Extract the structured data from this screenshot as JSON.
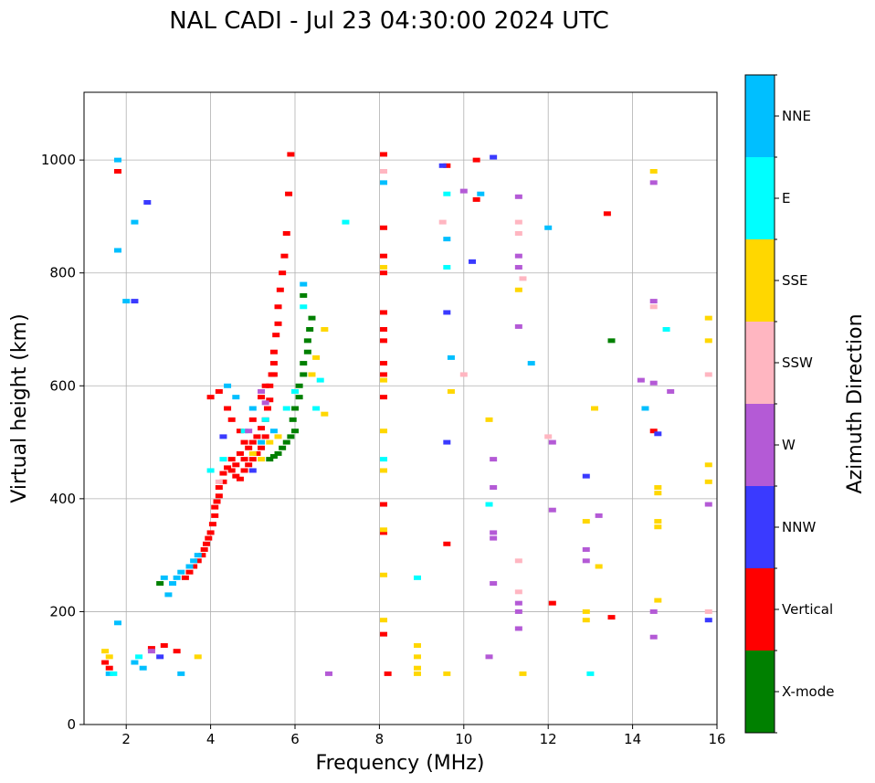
{
  "chart_data": {
    "type": "scatter",
    "title": "NAL CADI - Jul 23 04:30:00 2024 UTC",
    "xlabel": "Frequency (MHz)",
    "ylabel": "Virtual height (km)",
    "xlim": [
      1,
      16
    ],
    "ylim": [
      0,
      1120
    ],
    "xticks": [
      2,
      4,
      6,
      8,
      10,
      12,
      14,
      16
    ],
    "yticks": [
      0,
      200,
      400,
      600,
      800,
      1000
    ],
    "grid": true,
    "colorbar": {
      "title": "Azimuth Direction",
      "categories": [
        {
          "name": "X-mode",
          "color": "#008000"
        },
        {
          "name": "Vertical",
          "color": "#ff0000"
        },
        {
          "name": "NNW",
          "color": "#3a3aff"
        },
        {
          "name": "W",
          "color": "#b45ad6"
        },
        {
          "name": "SSW",
          "color": "#ffb6c1"
        },
        {
          "name": "SSE",
          "color": "#ffd700"
        },
        {
          "name": "E",
          "color": "#00ffff"
        },
        {
          "name": "NNE",
          "color": "#00bfff"
        }
      ]
    },
    "series": [
      {
        "name": "Vertical",
        "points": [
          [
            3.4,
            260
          ],
          [
            3.5,
            270
          ],
          [
            3.6,
            280
          ],
          [
            3.7,
            290
          ],
          [
            3.8,
            300
          ],
          [
            3.85,
            310
          ],
          [
            3.9,
            320
          ],
          [
            3.95,
            330
          ],
          [
            4.0,
            340
          ],
          [
            4.05,
            355
          ],
          [
            4.1,
            370
          ],
          [
            4.1,
            385
          ],
          [
            4.15,
            395
          ],
          [
            4.2,
            405
          ],
          [
            4.2,
            420
          ],
          [
            4.3,
            430
          ],
          [
            4.3,
            445
          ],
          [
            4.4,
            455
          ],
          [
            4.5,
            450
          ],
          [
            4.5,
            470
          ],
          [
            4.6,
            440
          ],
          [
            4.6,
            460
          ],
          [
            4.7,
            435
          ],
          [
            4.7,
            480
          ],
          [
            4.8,
            450
          ],
          [
            4.8,
            470
          ],
          [
            4.9,
            460
          ],
          [
            4.9,
            490
          ],
          [
            5.0,
            470
          ],
          [
            5.0,
            500
          ],
          [
            5.1,
            480
          ],
          [
            5.1,
            510
          ],
          [
            5.2,
            490
          ],
          [
            5.2,
            525
          ],
          [
            5.3,
            510
          ],
          [
            5.3,
            540
          ],
          [
            5.35,
            560
          ],
          [
            5.4,
            575
          ],
          [
            5.4,
            600
          ],
          [
            5.45,
            620
          ],
          [
            5.5,
            640
          ],
          [
            5.5,
            660
          ],
          [
            5.55,
            690
          ],
          [
            5.6,
            710
          ],
          [
            5.6,
            740
          ],
          [
            5.65,
            770
          ],
          [
            5.7,
            800
          ],
          [
            5.75,
            830
          ],
          [
            5.8,
            870
          ],
          [
            5.85,
            940
          ],
          [
            5.9,
            1010
          ],
          [
            4.0,
            580
          ],
          [
            4.2,
            590
          ],
          [
            4.4,
            560
          ],
          [
            4.5,
            540
          ],
          [
            4.7,
            520
          ],
          [
            4.8,
            500
          ],
          [
            5.0,
            540
          ],
          [
            5.2,
            580
          ],
          [
            5.3,
            600
          ],
          [
            5.5,
            620
          ],
          [
            3.2,
            130
          ],
          [
            2.9,
            140
          ],
          [
            2.6,
            135
          ],
          [
            1.6,
            100
          ],
          [
            1.5,
            110
          ],
          [
            1.8,
            980
          ],
          [
            8.1,
            1010
          ],
          [
            8.1,
            880
          ],
          [
            8.1,
            830
          ],
          [
            8.1,
            800
          ],
          [
            8.1,
            730
          ],
          [
            8.1,
            700
          ],
          [
            8.1,
            680
          ],
          [
            8.1,
            640
          ],
          [
            8.1,
            620
          ],
          [
            8.1,
            580
          ],
          [
            8.1,
            390
          ],
          [
            8.1,
            340
          ],
          [
            8.1,
            160
          ],
          [
            8.2,
            90
          ],
          [
            9.6,
            990
          ],
          [
            9.6,
            320
          ],
          [
            10.3,
            930
          ],
          [
            10.3,
            1000
          ],
          [
            12.1,
            215
          ],
          [
            13.4,
            905
          ],
          [
            13.5,
            190
          ],
          [
            14.5,
            520
          ]
        ]
      },
      {
        "name": "X-mode",
        "points": [
          [
            5.6,
            480
          ],
          [
            5.7,
            490
          ],
          [
            5.8,
            500
          ],
          [
            5.9,
            510
          ],
          [
            6.0,
            520
          ],
          [
            5.95,
            540
          ],
          [
            6.0,
            560
          ],
          [
            6.1,
            580
          ],
          [
            6.1,
            600
          ],
          [
            6.2,
            620
          ],
          [
            6.2,
            640
          ],
          [
            6.3,
            660
          ],
          [
            6.3,
            680
          ],
          [
            6.35,
            700
          ],
          [
            6.4,
            720
          ],
          [
            6.2,
            760
          ],
          [
            5.4,
            470
          ],
          [
            5.5,
            475
          ],
          [
            13.5,
            680
          ],
          [
            2.8,
            250
          ]
        ]
      },
      {
        "name": "NNE",
        "points": [
          [
            1.8,
            1000
          ],
          [
            2.2,
            890
          ],
          [
            2.0,
            750
          ],
          [
            1.8,
            840
          ],
          [
            3.0,
            230
          ],
          [
            3.1,
            250
          ],
          [
            3.2,
            260
          ],
          [
            3.3,
            270
          ],
          [
            3.5,
            280
          ],
          [
            3.6,
            290
          ],
          [
            3.7,
            300
          ],
          [
            4.4,
            600
          ],
          [
            4.6,
            580
          ],
          [
            5.0,
            560
          ],
          [
            5.2,
            500
          ],
          [
            5.5,
            520
          ],
          [
            6.2,
            780
          ],
          [
            1.8,
            180
          ],
          [
            2.2,
            110
          ],
          [
            2.4,
            100
          ],
          [
            3.3,
            90
          ],
          [
            8.1,
            960
          ],
          [
            9.6,
            860
          ],
          [
            9.7,
            650
          ],
          [
            10.4,
            940
          ],
          [
            11.6,
            640
          ],
          [
            12.0,
            880
          ],
          [
            14.3,
            560
          ],
          [
            1.6,
            90
          ],
          [
            2.9,
            260
          ]
        ]
      },
      {
        "name": "E",
        "points": [
          [
            4.0,
            450
          ],
          [
            4.3,
            470
          ],
          [
            4.8,
            520
          ],
          [
            5.3,
            540
          ],
          [
            5.8,
            560
          ],
          [
            6.0,
            590
          ],
          [
            6.6,
            610
          ],
          [
            6.5,
            560
          ],
          [
            2.3,
            120
          ],
          [
            8.1,
            470
          ],
          [
            8.9,
            260
          ],
          [
            9.6,
            810
          ],
          [
            9.6,
            940
          ],
          [
            10.6,
            390
          ],
          [
            13.0,
            90
          ],
          [
            14.8,
            700
          ],
          [
            1.7,
            90
          ],
          [
            6.2,
            740
          ],
          [
            7.2,
            890
          ]
        ]
      },
      {
        "name": "SSE",
        "points": [
          [
            5.0,
            480
          ],
          [
            5.2,
            470
          ],
          [
            5.4,
            500
          ],
          [
            5.6,
            510
          ],
          [
            6.4,
            620
          ],
          [
            6.5,
            650
          ],
          [
            6.7,
            700
          ],
          [
            6.7,
            550
          ],
          [
            8.1,
            810
          ],
          [
            8.1,
            610
          ],
          [
            8.1,
            520
          ],
          [
            8.1,
            450
          ],
          [
            8.1,
            345
          ],
          [
            8.1,
            265
          ],
          [
            8.1,
            185
          ],
          [
            8.9,
            140
          ],
          [
            8.9,
            120
          ],
          [
            8.9,
            100
          ],
          [
            8.9,
            90
          ],
          [
            9.6,
            90
          ],
          [
            9.7,
            590
          ],
          [
            10.6,
            540
          ],
          [
            11.3,
            770
          ],
          [
            13.1,
            560
          ],
          [
            12.9,
            360
          ],
          [
            12.9,
            200
          ],
          [
            12.9,
            185
          ],
          [
            13.2,
            280
          ],
          [
            14.5,
            980
          ],
          [
            14.6,
            420
          ],
          [
            14.6,
            410
          ],
          [
            14.6,
            360
          ],
          [
            14.6,
            350
          ],
          [
            14.6,
            220
          ],
          [
            15.8,
            720
          ],
          [
            15.8,
            680
          ],
          [
            15.8,
            430
          ],
          [
            15.8,
            460
          ],
          [
            1.6,
            120
          ],
          [
            1.5,
            130
          ],
          [
            3.7,
            120
          ],
          [
            11.4,
            90
          ]
        ]
      },
      {
        "name": "SSW",
        "points": [
          [
            10.0,
            620
          ],
          [
            11.3,
            890
          ],
          [
            11.3,
            870
          ],
          [
            11.4,
            790
          ],
          [
            11.3,
            290
          ],
          [
            11.3,
            235
          ],
          [
            14.5,
            740
          ],
          [
            15.8,
            620
          ],
          [
            15.8,
            200
          ],
          [
            8.1,
            980
          ],
          [
            9.5,
            890
          ],
          [
            12.0,
            510
          ],
          [
            4.2,
            430
          ]
        ]
      },
      {
        "name": "W",
        "points": [
          [
            5.2,
            590
          ],
          [
            5.3,
            570
          ],
          [
            4.9,
            520
          ],
          [
            10.0,
            945
          ],
          [
            10.7,
            470
          ],
          [
            10.7,
            420
          ],
          [
            10.7,
            340
          ],
          [
            10.7,
            330
          ],
          [
            10.7,
            250
          ],
          [
            10.6,
            120
          ],
          [
            11.3,
            935
          ],
          [
            11.3,
            830
          ],
          [
            11.3,
            810
          ],
          [
            11.3,
            705
          ],
          [
            11.3,
            215
          ],
          [
            11.3,
            200
          ],
          [
            11.3,
            170
          ],
          [
            12.1,
            500
          ],
          [
            12.1,
            380
          ],
          [
            12.9,
            310
          ],
          [
            12.9,
            290
          ],
          [
            13.2,
            370
          ],
          [
            14.2,
            610
          ],
          [
            14.5,
            750
          ],
          [
            14.5,
            605
          ],
          [
            14.5,
            960
          ],
          [
            14.5,
            200
          ],
          [
            14.5,
            155
          ],
          [
            14.9,
            590
          ],
          [
            15.8,
            390
          ],
          [
            2.6,
            130
          ],
          [
            6.8,
            90
          ]
        ]
      },
      {
        "name": "NNW",
        "points": [
          [
            2.2,
            750
          ],
          [
            2.5,
            925
          ],
          [
            5.0,
            450
          ],
          [
            9.6,
            730
          ],
          [
            9.6,
            500
          ],
          [
            9.5,
            990
          ],
          [
            10.2,
            820
          ],
          [
            10.7,
            1005
          ],
          [
            12.9,
            440
          ],
          [
            14.6,
            515
          ],
          [
            15.8,
            185
          ],
          [
            2.8,
            120
          ],
          [
            4.3,
            510
          ]
        ]
      }
    ]
  }
}
